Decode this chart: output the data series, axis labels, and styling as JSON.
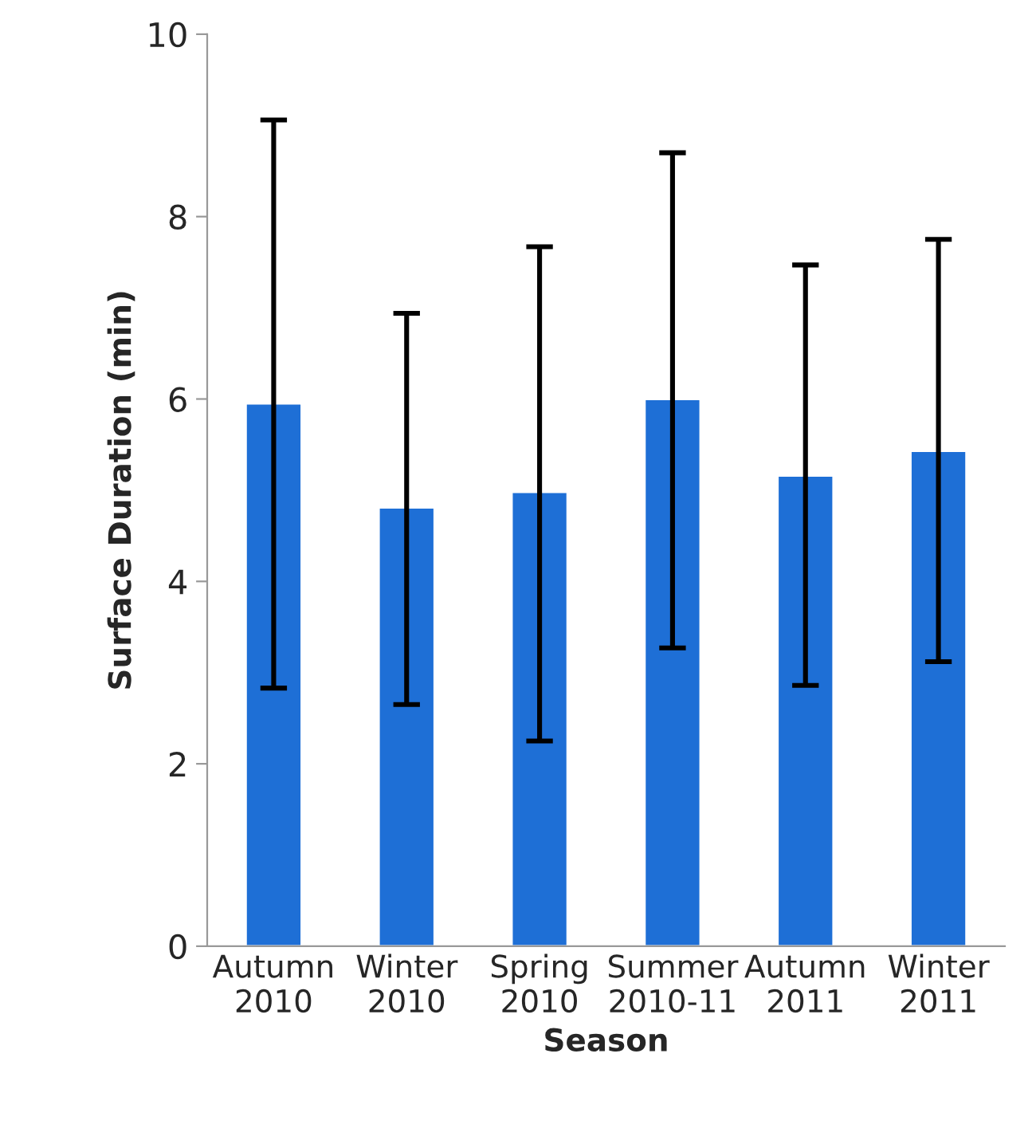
{
  "chart_data": {
    "type": "bar",
    "xlabel": "Season",
    "ylabel": "Surface Duration (min)",
    "categories": [
      "Autumn\n2010",
      "Winter\n2010",
      "Spring\n2010",
      "Summer\n2010-11",
      "Autumn\n2011",
      "Winter\n2011"
    ],
    "values": [
      5.95,
      4.81,
      4.98,
      6.0,
      5.16,
      5.43
    ],
    "errors": [
      [
        2.83,
        9.06
      ],
      [
        2.65,
        6.94
      ],
      [
        2.25,
        7.67
      ],
      [
        3.27,
        8.7
      ],
      [
        2.86,
        7.47
      ],
      [
        3.12,
        7.75
      ]
    ],
    "color": "#1e6fd6",
    "ylim": [
      0,
      10
    ],
    "yticks": [
      0,
      2,
      4,
      6,
      8,
      10
    ],
    "grid": false
  }
}
